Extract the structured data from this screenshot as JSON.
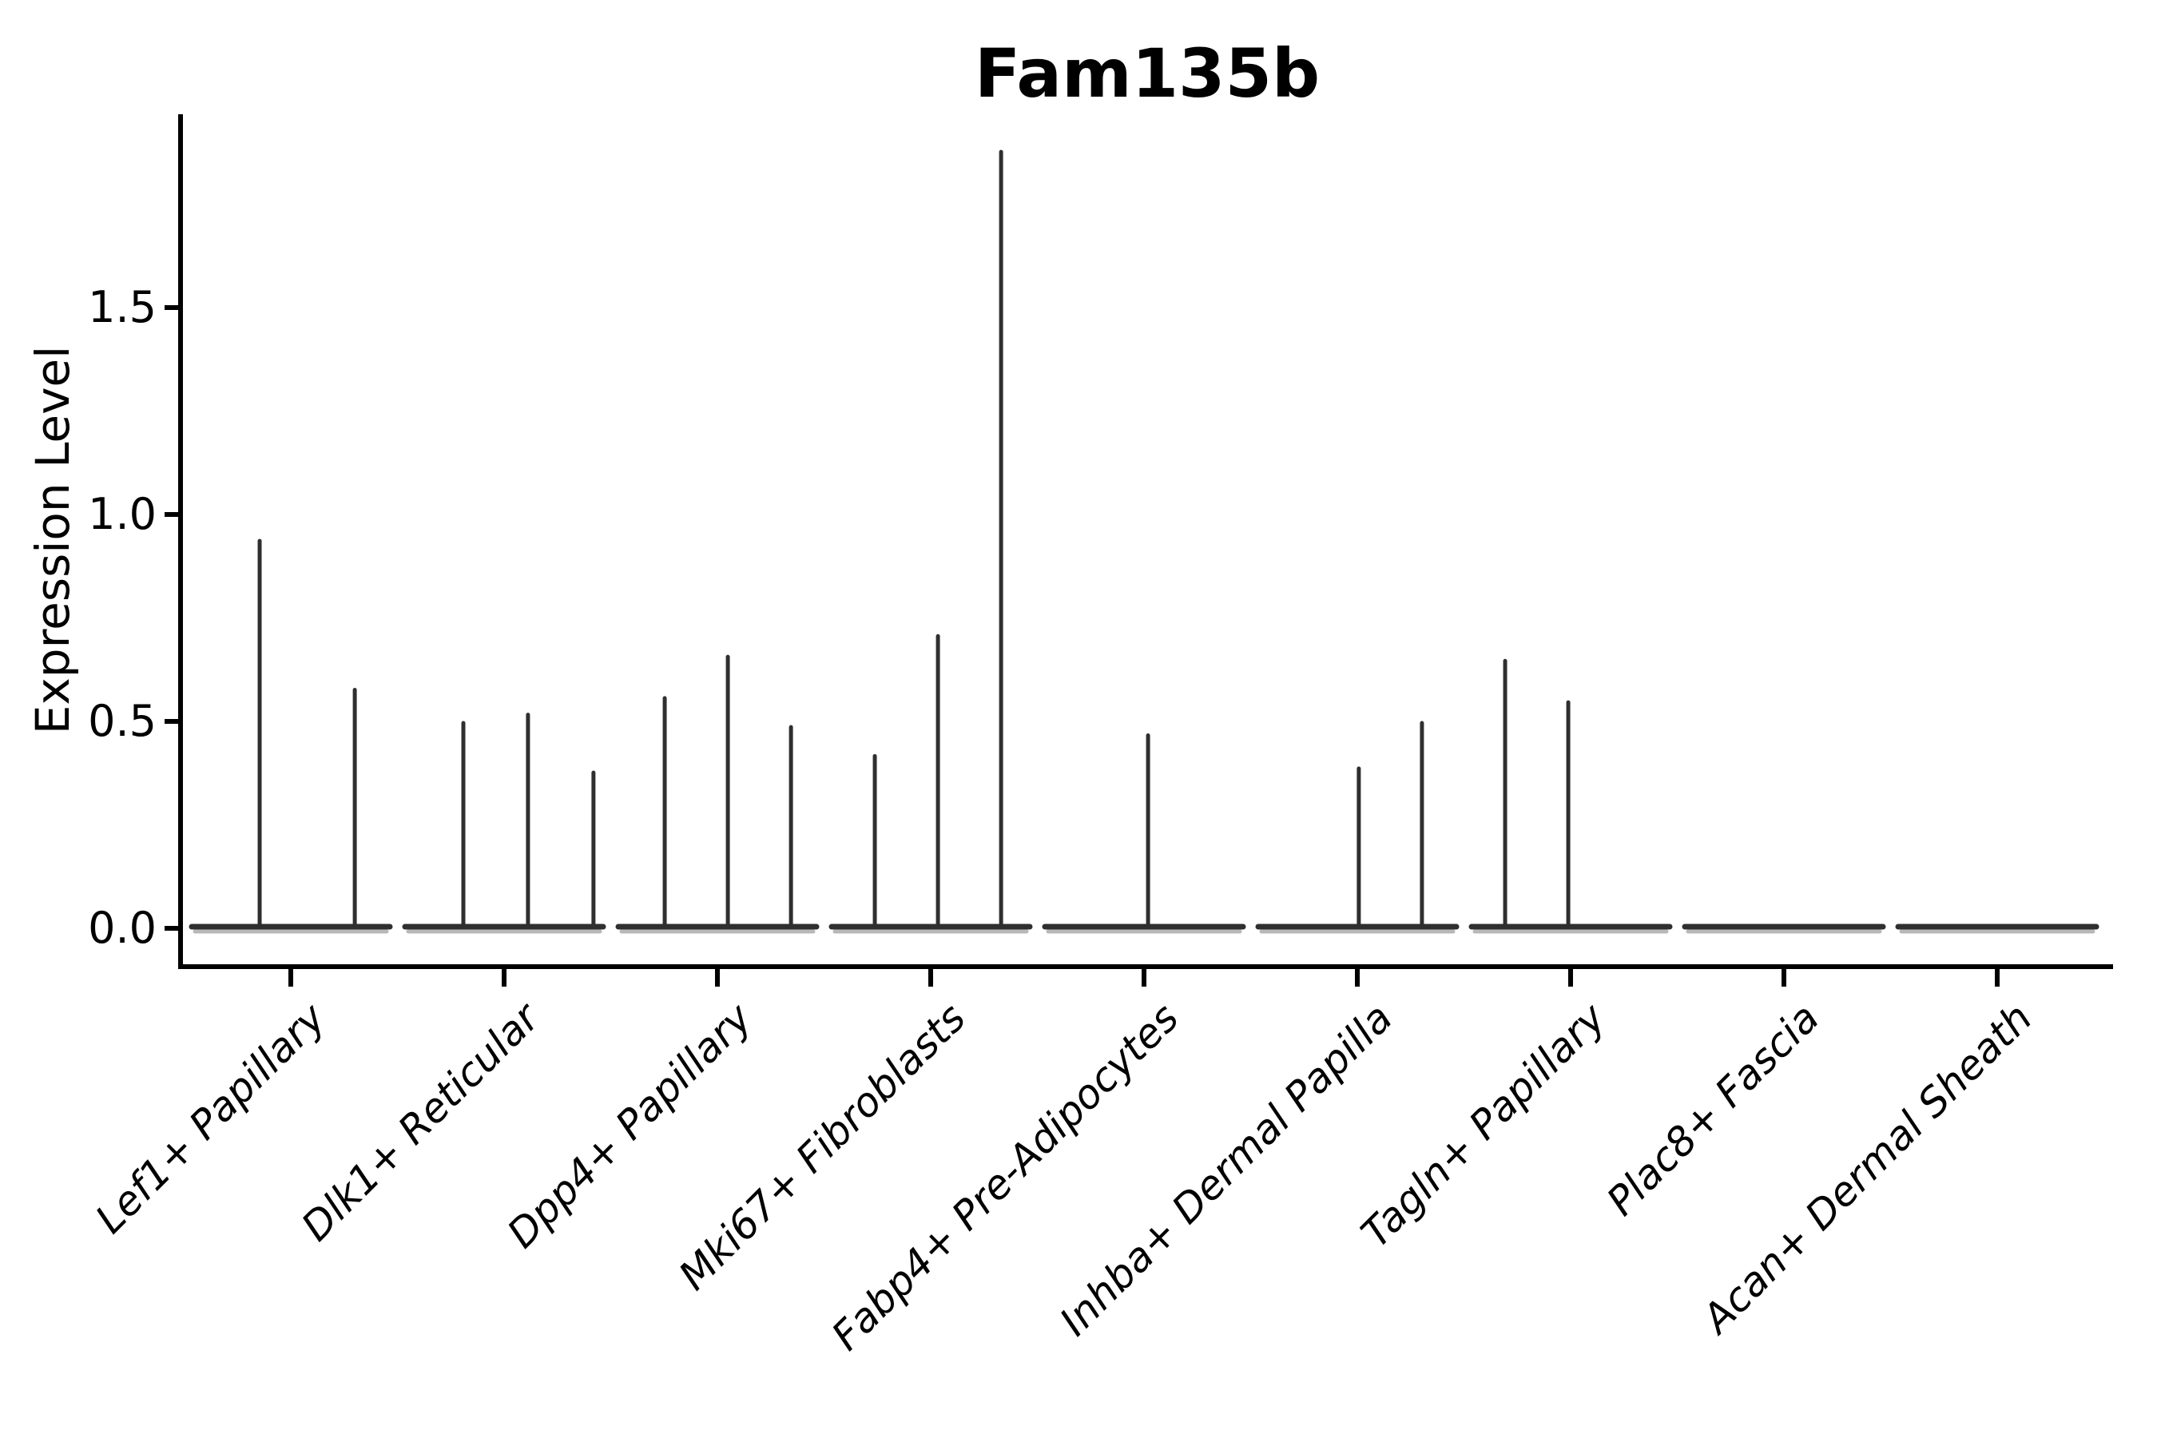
{
  "title": "Fam135b",
  "y_axis": {
    "label": "Expression Level",
    "tick_labels": [
      "0.0",
      "0.5",
      "1.0",
      "1.5"
    ],
    "tick_values": [
      0.0,
      0.5,
      1.0,
      1.5
    ]
  },
  "x_axis": {
    "categories": [
      "Lef1+ Papillary",
      "Dlk1+ Reticular",
      "Dpp4+ Papillary",
      "Mki67+ Fibroblasts",
      "Fabp4+ Pre-Adipocytes",
      "Inhba+ Dermal Papilla",
      "Tagln+ Papillary",
      "Plac8+ Fascia",
      "Acan+ Dermal Sheath"
    ]
  },
  "chart_data": {
    "type": "violin",
    "title": "Fam135b",
    "xlabel": "",
    "ylabel": "Expression Level",
    "categories": [
      "Lef1+ Papillary",
      "Dlk1+ Reticular",
      "Dpp4+ Papillary",
      "Mki67+ Fibroblasts",
      "Fabp4+ Pre-Adipocytes",
      "Inhba+ Dermal Papilla",
      "Tagln+ Papillary",
      "Plac8+ Fascia",
      "Acan+ Dermal Sheath"
    ],
    "yticks": [
      0.0,
      0.5,
      1.0,
      1.5
    ],
    "ytick_labels": [
      "0.0",
      "0.5",
      "1.0",
      "1.5"
    ],
    "ylim": [
      -0.09,
      1.96
    ],
    "grid": false,
    "legend": false,
    "note": "Collapsed violins: nearly all expression mass at 0 gives a flat baseline per category; thin spikes rise to the maximum expression value. pos = fractional x-position of each spike within its category slot.",
    "series": [
      {
        "category": "Lef1+ Papillary",
        "spikes": [
          {
            "pos": 0.354,
            "max": 0.94
          },
          {
            "pos": 0.8,
            "max": 0.58
          }
        ]
      },
      {
        "category": "Dlk1+ Reticular",
        "spikes": [
          {
            "pos": 0.309,
            "max": 0.5
          },
          {
            "pos": 0.612,
            "max": 0.52
          },
          {
            "pos": 0.919,
            "max": 0.38
          }
        ]
      },
      {
        "category": "Dpp4+ Papillary",
        "spikes": [
          {
            "pos": 0.253,
            "max": 0.56
          },
          {
            "pos": 0.549,
            "max": 0.66
          },
          {
            "pos": 0.845,
            "max": 0.49
          }
        ]
      },
      {
        "category": "Mki67+ Fibroblasts",
        "spikes": [
          {
            "pos": 0.238,
            "max": 0.42
          },
          {
            "pos": 0.534,
            "max": 0.71
          },
          {
            "pos": 0.83,
            "max": 1.88
          }
        ]
      },
      {
        "category": "Fabp4+ Pre-Adipocytes",
        "spikes": [
          {
            "pos": 0.519,
            "max": 0.47
          }
        ]
      },
      {
        "category": "Inhba+ Dermal Papilla",
        "spikes": [
          {
            "pos": 0.507,
            "max": 0.39
          },
          {
            "pos": 0.803,
            "max": 0.5
          }
        ]
      },
      {
        "category": "Tagln+ Papillary",
        "spikes": [
          {
            "pos": 0.193,
            "max": 0.65
          },
          {
            "pos": 0.489,
            "max": 0.55
          }
        ]
      },
      {
        "category": "Plac8+ Fascia",
        "spikes": []
      },
      {
        "category": "Acan+ Dermal Sheath",
        "spikes": []
      }
    ],
    "style": {
      "violin_color": "#2f2f2f",
      "violin_fill_hint": "#9a9a9a",
      "axis_color": "#000000",
      "text_color": "#000000",
      "background": "#ffffff"
    }
  }
}
